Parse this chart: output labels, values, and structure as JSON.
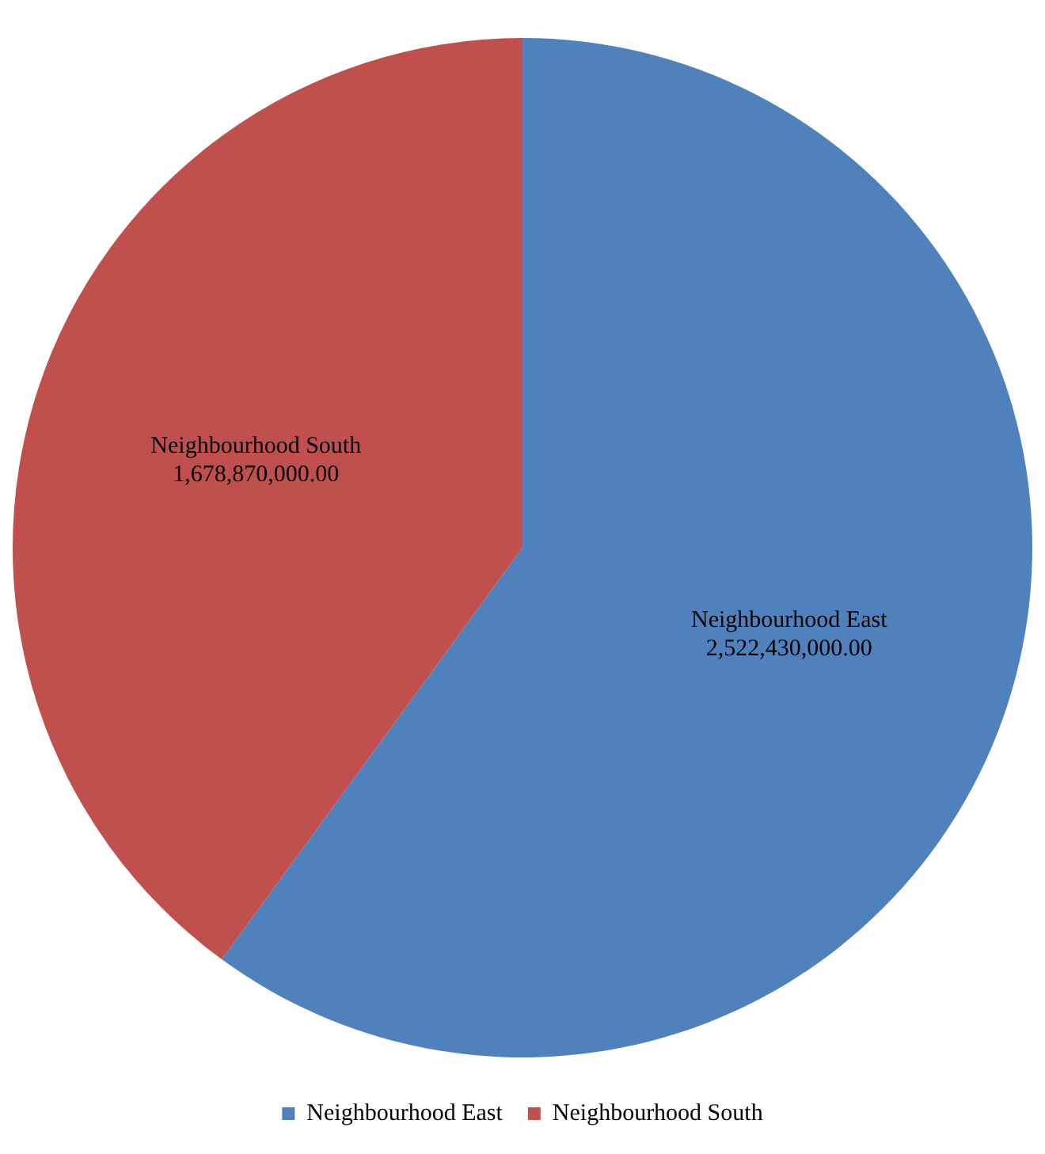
{
  "chart_data": {
    "type": "pie",
    "categories": [
      "Neighbourhood East",
      "Neighbourhood South"
    ],
    "values": [
      2522430000,
      1678870000
    ],
    "colors": [
      "#4f81bd",
      "#c0504d"
    ],
    "value_labels": [
      "2,522,430,000.00",
      "1,678,870,000.00"
    ],
    "legend": "bottom"
  }
}
